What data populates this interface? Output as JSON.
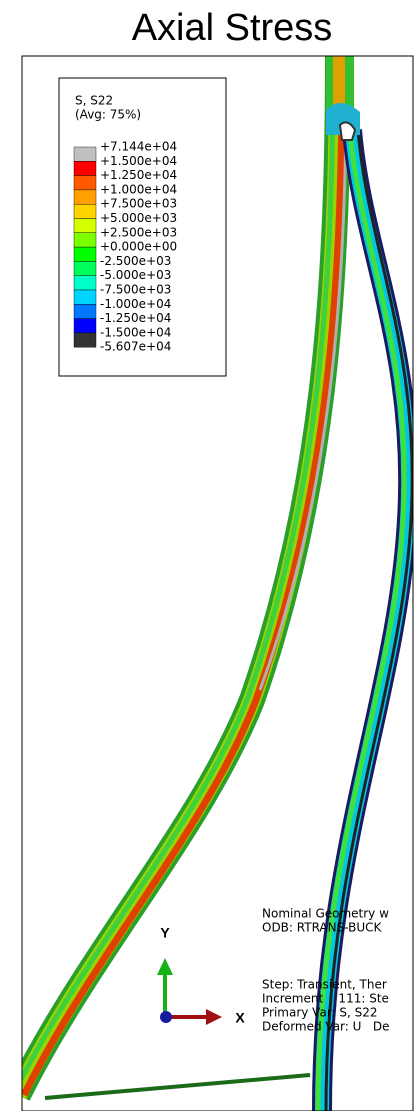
{
  "title": "Axial Stress",
  "legend": {
    "title": "S, S22",
    "subtitle": "(Avg: 75%)",
    "labels": [
      "+7.144e+04",
      "+1.500e+04",
      "+1.250e+04",
      "+1.000e+04",
      "+7.500e+03",
      "+5.000e+03",
      "+2.500e+03",
      "+0.000e+00",
      "-2.500e+03",
      "-5.000e+03",
      "-7.500e+03",
      "-1.000e+04",
      "-1.250e+04",
      "-1.500e+04",
      "-5.607e+04"
    ],
    "colors": [
      "#c0c0c0",
      "#ff0000",
      "#ff5a00",
      "#ffa000",
      "#ffd400",
      "#d4ff00",
      "#7cff00",
      "#00ff00",
      "#00ff5a",
      "#00ffc8",
      "#00d4ff",
      "#0078ff",
      "#0000ff",
      "#333333"
    ]
  },
  "triad": {
    "y": "Y",
    "x": "X"
  },
  "info": {
    "model": [
      "Nominal Geometry w",
      "ODB: RTRANS-BUCK"
    ],
    "step": [
      "Step: Transient, Ther",
      "Increment    111: Ste",
      "Primary Var: S, S22",
      "Deformed Var: U   De"
    ]
  }
}
